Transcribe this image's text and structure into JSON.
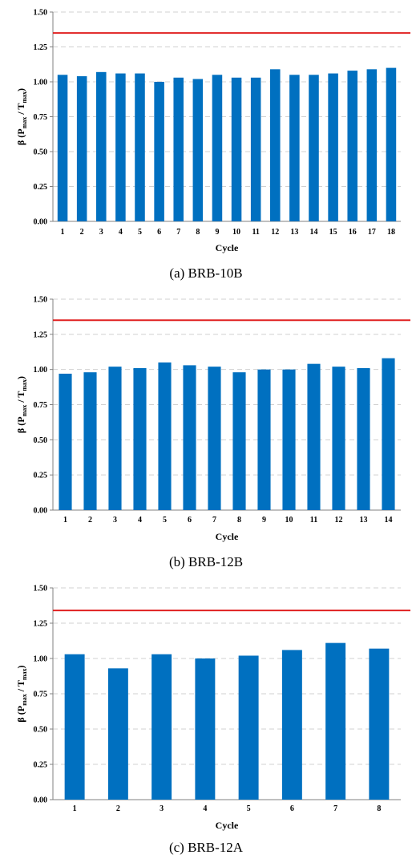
{
  "chart_data": [
    {
      "type": "bar",
      "title": "",
      "caption": "(a) BRB-10B",
      "xlabel": "Cycle",
      "ylabel_prefix": "β (P",
      "ylabel_sub1": "max",
      "ylabel_mid": " / T",
      "ylabel_sub2": "max",
      "ylabel_suffix": ")",
      "ylim": [
        0,
        1.5
      ],
      "yticks": [
        "0.00",
        "0.25",
        "0.50",
        "0.75",
        "1.00",
        "1.25",
        "1.50"
      ],
      "grid": true,
      "bar_color": "#0070c0",
      "reference_line": {
        "value": 1.35,
        "color": "#e02020"
      },
      "categories": [
        "1",
        "2",
        "3",
        "4",
        "5",
        "6",
        "7",
        "8",
        "9",
        "10",
        "11",
        "12",
        "13",
        "14",
        "15",
        "16",
        "17",
        "18"
      ],
      "values": [
        1.05,
        1.04,
        1.07,
        1.06,
        1.06,
        1.0,
        1.03,
        1.02,
        1.05,
        1.03,
        1.03,
        1.09,
        1.05,
        1.05,
        1.06,
        1.08,
        1.09,
        1.1
      ]
    },
    {
      "type": "bar",
      "title": "",
      "caption": "(b) BRB-12B",
      "xlabel": "Cycle",
      "ylabel_prefix": "β (P",
      "ylabel_sub1": "max",
      "ylabel_mid": " / T",
      "ylabel_sub2": "max",
      "ylabel_suffix": ")",
      "ylim": [
        0,
        1.5
      ],
      "yticks": [
        "0.00",
        "0.25",
        "0.50",
        "0.75",
        "1.00",
        "1.25",
        "1.50"
      ],
      "grid": true,
      "bar_color": "#0070c0",
      "reference_line": {
        "value": 1.35,
        "color": "#e02020"
      },
      "categories": [
        "1",
        "2",
        "3",
        "4",
        "5",
        "6",
        "7",
        "8",
        "9",
        "10",
        "11",
        "12",
        "13",
        "14"
      ],
      "values": [
        0.97,
        0.98,
        1.02,
        1.01,
        1.05,
        1.03,
        1.02,
        0.98,
        1.0,
        1.0,
        1.04,
        1.02,
        1.01,
        1.08
      ]
    },
    {
      "type": "bar",
      "title": "",
      "caption": "(c) BRB-12A",
      "xlabel": "Cycle",
      "ylabel_prefix": "β (P",
      "ylabel_sub1": "max",
      "ylabel_mid": " / T",
      "ylabel_sub2": "max",
      "ylabel_suffix": ")",
      "ylim": [
        0,
        1.5
      ],
      "yticks": [
        "0.00",
        "0.25",
        "0.50",
        "0.75",
        "1.00",
        "1.25",
        "1.50"
      ],
      "grid": true,
      "bar_color": "#0070c0",
      "reference_line": {
        "value": 1.34,
        "color": "#e02020"
      },
      "categories": [
        "1",
        "2",
        "3",
        "4",
        "5",
        "6",
        "7",
        "8"
      ],
      "values": [
        1.03,
        0.93,
        1.03,
        1.0,
        1.02,
        1.06,
        1.11,
        1.07
      ]
    }
  ]
}
